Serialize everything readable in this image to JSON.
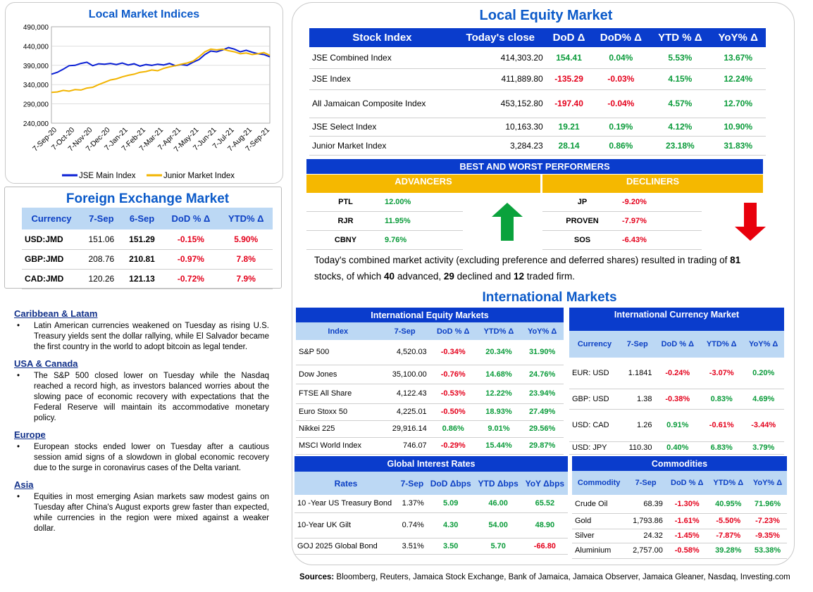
{
  "chart_data": {
    "type": "line",
    "title": "Local Market Indices",
    "ylim": [
      240000,
      490000
    ],
    "yticks": [
      "490,000",
      "440,000",
      "390,000",
      "340,000",
      "290,000",
      "240,000"
    ],
    "xticks": [
      "7-Sep-20",
      "7-Oct-20",
      "7-Nov-20",
      "7-Dec-20",
      "7-Jan-21",
      "7-Feb-21",
      "7-Mar-21",
      "7-Apr-21",
      "7-May-21",
      "7-Jun-21",
      "7-Jul-21",
      "7-Aug-21",
      "7-Sep-21"
    ],
    "series": [
      {
        "name": "JSE Main Index",
        "color": "#0a1fd4",
        "values": [
          367000,
          372000,
          380000,
          389000,
          390000,
          395000,
          398000,
          389000,
          394000,
          393000,
          395000,
          392000,
          396000,
          391000,
          394000,
          388000,
          392000,
          390000,
          393000,
          391000,
          395000,
          389000,
          392000,
          390000,
          398000,
          405000,
          418000,
          427000,
          425000,
          430000,
          436000,
          432000,
          425000,
          429000,
          424000,
          420000,
          418000,
          412000
        ]
      },
      {
        "name": "Junior Market Index",
        "color": "#f2b400",
        "values": [
          320000,
          321000,
          325000,
          323000,
          327000,
          326000,
          331000,
          333000,
          340000,
          346000,
          352000,
          355000,
          360000,
          364000,
          367000,
          372000,
          374000,
          378000,
          376000,
          382000,
          386000,
          389000,
          393000,
          396000,
          401000,
          412000,
          425000,
          432000,
          430000,
          432000,
          428000,
          425000,
          420000,
          422000,
          418000,
          420000,
          423000,
          416000
        ]
      }
    ]
  },
  "fx": {
    "title": "Foreign Exchange Market",
    "headers": [
      "Currency",
      "7-Sep",
      "6-Sep",
      "DoD % Δ",
      "YTD% Δ"
    ],
    "rows": [
      [
        "USD:JMD",
        "151.06",
        "151.29",
        "-0.15%",
        "5.90%"
      ],
      [
        "GBP:JMD",
        "208.76",
        "210.81",
        "-0.97%",
        "7.8%"
      ],
      [
        "CAD:JMD",
        "120.26",
        "121.13",
        "-0.72%",
        "7.9%"
      ]
    ]
  },
  "notes": [
    {
      "heading": "Caribbean & Latam",
      "text": "Latin American currencies weakened on Tuesday as rising U.S. Treasury yields sent the dollar rallying, while El Salvador became the first country in the world to adopt bitcoin as legal tender."
    },
    {
      "heading": "USA & Canada",
      "text": "The S&P 500 closed lower on Tuesday while the Nasdaq reached a record high, as investors balanced worries about the slowing pace of economic recovery with expectations that the Federal Reserve will maintain its accommodative monetary policy."
    },
    {
      "heading": "Europe",
      "text": "European stocks ended lower on Tuesday after a cautious session amid signs of a slowdown in global economic recovery due to the surge in coronavirus cases of the Delta variant."
    },
    {
      "heading": "Asia",
      "text": "Equities in most emerging Asian markets saw modest gains on Tuesday after China's August exports grew faster than expected, while currencies in the region were mixed against a weaker dollar."
    }
  ],
  "equity": {
    "title": "Local Equity Market",
    "headers": [
      "Stock Index",
      "Today's close",
      "DoD  Δ",
      "DoD% Δ",
      "YTD % Δ",
      "YoY% Δ"
    ],
    "rows": [
      [
        "JSE Combined Index",
        "414,303.20",
        "154.41",
        "0.04%",
        "5.53%",
        "13.67%"
      ],
      [
        "JSE Index",
        "411,889.80",
        "-135.29",
        "-0.03%",
        "4.15%",
        "12.24%"
      ],
      [
        "All Jamaican Composite Index",
        "453,152.80",
        "-197.40",
        "-0.04%",
        "4.57%",
        "12.70%"
      ],
      [
        "JSE Select Index",
        "10,163.30",
        "19.21",
        "0.19%",
        "4.12%",
        "10.90%"
      ],
      [
        "Junior Market Index",
        "3,284.23",
        "28.14",
        "0.86%",
        "23.18%",
        "31.83%"
      ]
    ]
  },
  "performers": {
    "title": "BEST AND WORST PERFORMERS",
    "adv_label": "ADVANCERS",
    "dec_label": "DECLINERS",
    "advancers": [
      [
        "PTL",
        "12.00%"
      ],
      [
        "RJR",
        "11.95%"
      ],
      [
        "CBNY",
        "9.76%"
      ]
    ],
    "decliners": [
      [
        "JP",
        "-9.20%"
      ],
      [
        "PROVEN",
        "-7.97%"
      ],
      [
        "SOS",
        "-6.43%"
      ]
    ]
  },
  "summary": {
    "p1": "Today's combined market activity (excluding preference and deferred shares) resulted in trading of ",
    "n_total": "81",
    "p2": " stocks, of which ",
    "n_adv": "40",
    "p3": " advanced, ",
    "n_dec": "29",
    "p4": " declined and ",
    "n_firm": "12",
    "p5": " traded firm."
  },
  "intl_title": "International Markets",
  "intl_equity": {
    "title": "International Equity Markets",
    "headers": [
      "Index",
      "7-Sep",
      "DoD % Δ",
      "YTD% Δ",
      "YoY% Δ"
    ],
    "rows": [
      [
        "S&P 500",
        "4,520.03",
        "-0.34%",
        "20.34%",
        "31.90%"
      ],
      [
        "Dow Jones",
        "35,100.00",
        "-0.76%",
        "14.68%",
        "24.76%"
      ],
      [
        "FTSE All Share",
        "4,122.43",
        "-0.53%",
        "12.22%",
        "23.94%"
      ],
      [
        "Euro Stoxx 50",
        "4,225.01",
        "-0.50%",
        "18.93%",
        "27.49%"
      ],
      [
        "Nikkei 225",
        "29,916.14",
        "0.86%",
        "9.01%",
        "29.56%"
      ],
      [
        "MSCI World Index",
        "746.07",
        "-0.29%",
        "15.44%",
        "29.87%"
      ]
    ]
  },
  "intl_currency": {
    "title": "International Currency Market",
    "headers": [
      "Currency",
      "7-Sep",
      "DoD % Δ",
      "YTD% Δ",
      "YoY% Δ"
    ],
    "rows": [
      [
        "EUR: USD",
        "1.1841",
        "-0.24%",
        "-3.07%",
        "0.20%"
      ],
      [
        "GBP: USD",
        "1.38",
        "-0.38%",
        "0.83%",
        "4.69%"
      ],
      [
        "USD: CAD",
        "1.26",
        "0.91%",
        "-0.61%",
        "-3.44%"
      ],
      [
        "USD: JPY",
        "110.30",
        "0.40%",
        "6.83%",
        "3.79%"
      ]
    ]
  },
  "rates": {
    "title": "Global Interest Rates",
    "headers": [
      "Rates",
      "7-Sep",
      "DoD Δbps",
      "YTD Δbps",
      "YoY Δbps"
    ],
    "rows": [
      [
        "10 -Year US Treasury Bond",
        "1.37%",
        "5.09",
        "46.00",
        "65.52"
      ],
      [
        "10-Year UK Gilt",
        "0.74%",
        "4.30",
        "54.00",
        "48.90"
      ],
      [
        "GOJ 2025 Global Bond",
        "3.51%",
        "3.50",
        "5.70",
        "-66.80"
      ]
    ]
  },
  "commodities": {
    "title": "Commodities",
    "headers": [
      "Commodity",
      "7-Sep",
      "DoD % Δ",
      "YTD% Δ",
      "YoY% Δ"
    ],
    "rows": [
      [
        "Crude Oil",
        "68.39",
        "-1.30%",
        "40.95%",
        "71.96%"
      ],
      [
        "Gold",
        "1,793.86",
        "-1.61%",
        "-5.50%",
        "-7.23%"
      ],
      [
        "Silver",
        "24.32",
        "-1.45%",
        "-7.87%",
        "-9.35%"
      ],
      [
        "Aluminium",
        "2,757.00",
        "-0.58%",
        "39.28%",
        "53.38%"
      ]
    ]
  },
  "sources": {
    "label": "Sources:",
    "text": " Bloomberg, Reuters, Jamaica Stock Exchange, Bank of Jamaica, Jamaica Observer, Jamaica Gleaner, Nasdaq, Investing.com"
  },
  "colors": {
    "pos": "#0a9b3a",
    "neg": "#e4001b",
    "header": "#0a3ccc",
    "gold": "#f5b800"
  }
}
